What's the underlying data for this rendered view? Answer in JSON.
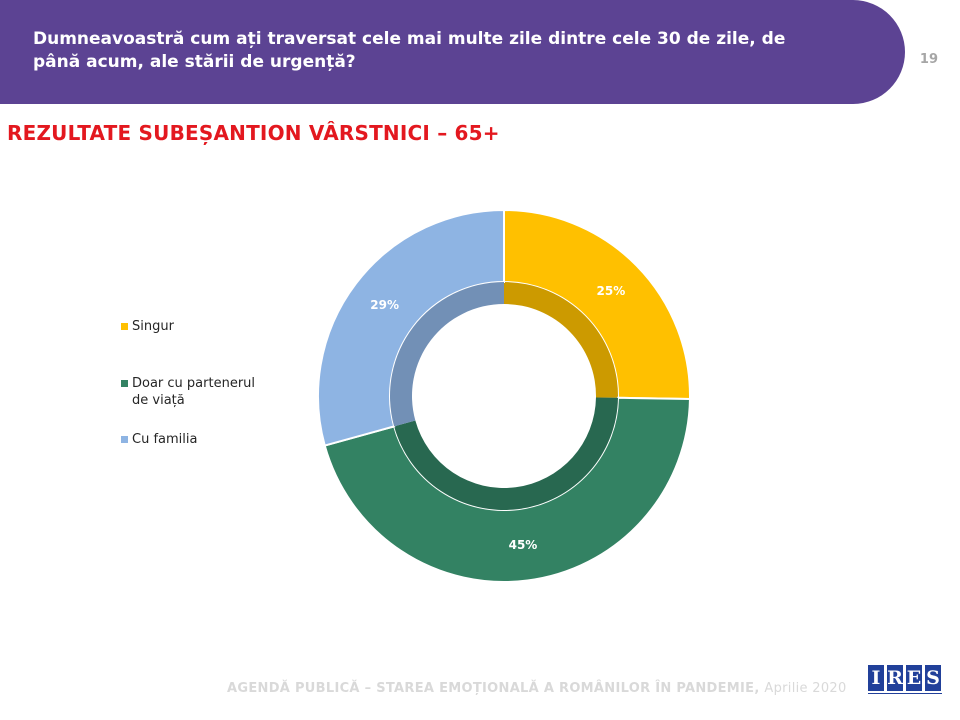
{
  "header": {
    "question": "Dumneavoastră cum ați traversat cele mai multe zile dintre cele 30 de zile, de până acum, ale stării de urgență?",
    "page_number": "19"
  },
  "section_title": "REZULTATE SUBEȘANTION VÂRSTNICI – 65+",
  "chart_data": {
    "type": "pie",
    "subtype": "donut",
    "categories": [
      "Singur",
      "Doar cu partenerul de viață",
      "Cu familia"
    ],
    "values": [
      25,
      45,
      29
    ],
    "labels": [
      "25%",
      "45%",
      "29%"
    ],
    "colors": [
      "#ffc000",
      "#338263",
      "#8eb4e3"
    ],
    "inner_colors": [
      "#cc9a00",
      "#286850",
      "#7290b6"
    ],
    "legend_placement": "left"
  },
  "legend": [
    {
      "label": "Singur",
      "color": "#ffc000"
    },
    {
      "label": "Doar cu partenerul de viață",
      "color": "#338263"
    },
    {
      "label": "Cu familia",
      "color": "#8eb4e3"
    }
  ],
  "footer": {
    "main": "AGENDĂ PUBLICĂ – STAREA EMOȚIONALĂ A ROMÂNILOR ÎN PANDEMIE,",
    "date": "Aprilie 2020"
  },
  "logo": {
    "letters": [
      "I",
      "R",
      "E",
      "S"
    ]
  }
}
